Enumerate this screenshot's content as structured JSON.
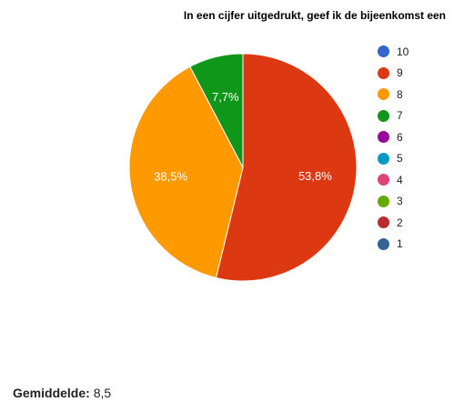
{
  "chart_data": {
    "type": "pie",
    "title": "In een cijfer uitgedrukt, geef ik de bijeenkomst een",
    "slices": [
      {
        "name": "10",
        "value": 0,
        "color": "#3366cc"
      },
      {
        "name": "9",
        "value": 53.8,
        "label": "53,8%",
        "color": "#dc3912"
      },
      {
        "name": "8",
        "value": 38.5,
        "label": "38,5%",
        "color": "#ff9900"
      },
      {
        "name": "7",
        "value": 7.7,
        "label": "7,7%",
        "color": "#109618"
      },
      {
        "name": "6",
        "value": 0,
        "color": "#990099"
      },
      {
        "name": "5",
        "value": 0,
        "color": "#0099c6"
      },
      {
        "name": "4",
        "value": 0,
        "color": "#dd4477"
      },
      {
        "name": "3",
        "value": 0,
        "color": "#66aa00"
      },
      {
        "name": "2",
        "value": 0,
        "color": "#b82e2e"
      },
      {
        "name": "1",
        "value": 0,
        "color": "#316395"
      }
    ],
    "legend_position": "right"
  },
  "summary": {
    "label": "Gemiddelde:",
    "value": "8,5"
  }
}
